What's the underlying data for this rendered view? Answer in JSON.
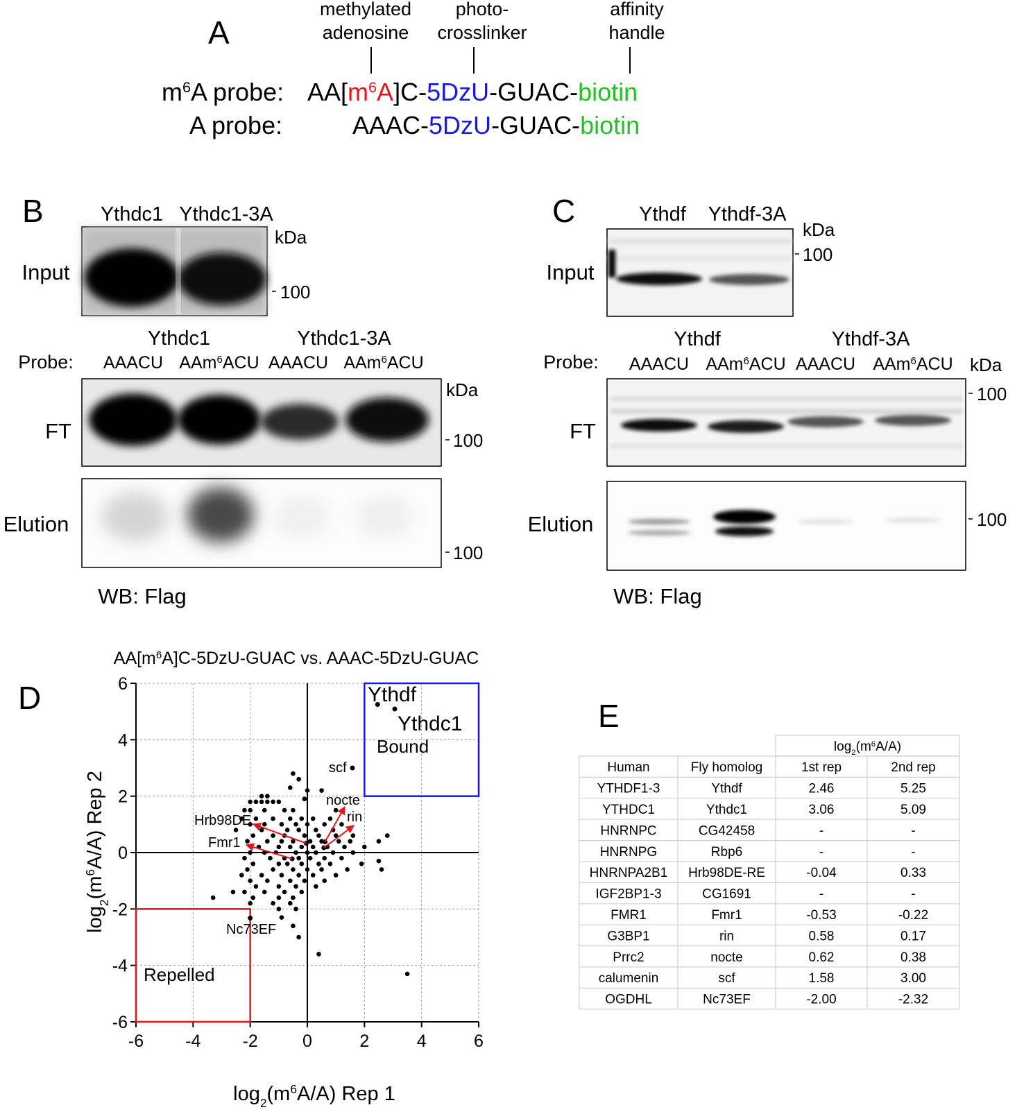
{
  "panel_a": {
    "label": "A",
    "annotations": [
      {
        "lines": [
          "methylated",
          "adenosine"
        ]
      },
      {
        "lines": [
          "photo-",
          "crosslinker"
        ]
      },
      {
        "lines": [
          "affinity",
          "handle"
        ]
      }
    ],
    "probes": [
      {
        "name": [
          {
            "text": "m"
          },
          {
            "text": "6",
            "sup": true
          },
          {
            "text": "A probe:"
          }
        ],
        "sequence": [
          {
            "text": "AA["
          },
          {
            "text": "m",
            "color": "#e8141b"
          },
          {
            "text": "6",
            "color": "#e8141b",
            "sup": true
          },
          {
            "text": "A",
            "color": "#e8141b"
          },
          {
            "text": "]C-"
          },
          {
            "text": "5DzU",
            "color": "#1a1adc"
          },
          {
            "text": "-GUAC-"
          },
          {
            "text": "biotin",
            "color": "#22c322"
          }
        ]
      },
      {
        "name": [
          {
            "text": "A probe:"
          }
        ],
        "sequence": [
          {
            "text": "AAAC-"
          },
          {
            "text": "5DzU",
            "color": "#1a1adc"
          },
          {
            "text": "-GUAC-"
          },
          {
            "text": "biotin",
            "color": "#22c322"
          }
        ]
      }
    ]
  },
  "panel_b": {
    "label": "B",
    "input": {
      "lanes": [
        "Ythdc1",
        "Ythdc1-3A"
      ],
      "unit": "kDa",
      "name": "Input",
      "marker": "100"
    },
    "pulldown": {
      "groups": [
        "Ythdc1",
        "Ythdc1-3A"
      ],
      "probe_label": "Probe:",
      "lanes": [
        [
          {
            "text": "AAACU"
          }
        ],
        [
          {
            "text": "AAm"
          },
          {
            "text": "6",
            "sup": true
          },
          {
            "text": "ACU"
          }
        ],
        [
          {
            "text": "AAACU"
          }
        ],
        [
          {
            "text": "AAm"
          },
          {
            "text": "6",
            "sup": true
          },
          {
            "text": "ACU"
          }
        ]
      ],
      "ft": {
        "name": "FT",
        "unit": "kDa",
        "marker": "100"
      },
      "elution": {
        "name": "Elution",
        "marker": "100"
      }
    },
    "footer": "WB: Flag"
  },
  "panel_c": {
    "label": "C",
    "input": {
      "lanes": [
        "Ythdf",
        "Ythdf-3A"
      ],
      "unit": "kDa",
      "name": "Input",
      "marker": "100"
    },
    "pulldown": {
      "groups": [
        "Ythdf",
        "Ythdf-3A"
      ],
      "probe_label": "Probe:",
      "unit": "kDa",
      "lanes": [
        [
          {
            "text": "AAACU"
          }
        ],
        [
          {
            "text": "AAm"
          },
          {
            "text": "6",
            "sup": true
          },
          {
            "text": "ACU"
          }
        ],
        [
          {
            "text": "AAACU"
          }
        ],
        [
          {
            "text": "AAm"
          },
          {
            "text": "6",
            "sup": true
          },
          {
            "text": "ACU"
          }
        ]
      ],
      "ft": {
        "name": "FT",
        "marker": "100"
      },
      "elution": {
        "name": "Elution",
        "marker": "100"
      }
    },
    "footer": "WB: Flag"
  },
  "chart_data": {
    "type": "scatter",
    "label": "D",
    "title": [
      {
        "text": "AA[m"
      },
      {
        "text": "6",
        "sup": true
      },
      {
        "text": "A]C-5DzU-GUAC vs. AAAC-5DzU-GUAC"
      }
    ],
    "x_label": [
      {
        "text": "log"
      },
      {
        "text": "2",
        "sub": true
      },
      {
        "text": "(m"
      },
      {
        "text": "6",
        "sup": true
      },
      {
        "text": "A/A) Rep 1"
      }
    ],
    "y_label": [
      {
        "text": "log"
      },
      {
        "text": "2",
        "sub": true
      },
      {
        "text": "(m"
      },
      {
        "text": "6",
        "sup": true
      },
      {
        "text": "A/A) Rep 2"
      }
    ],
    "xlim": [
      -6,
      6
    ],
    "ylim": [
      -6,
      6
    ],
    "xticks": [
      -6,
      -4,
      -2,
      0,
      2,
      4,
      6
    ],
    "yticks": [
      -6,
      -4,
      -2,
      0,
      2,
      4,
      6
    ],
    "grid": true,
    "color": "#000000",
    "points": [
      [
        -0.5,
        2.8
      ],
      [
        -0.3,
        2.6
      ],
      [
        -0.6,
        2.3
      ],
      [
        0.0,
        2.2
      ],
      [
        0.5,
        2.2
      ],
      [
        -0.1,
        1.9
      ],
      [
        -1.6,
        2.0
      ],
      [
        -1.4,
        2.0
      ],
      [
        -2.0,
        1.8
      ],
      [
        -1.8,
        1.8
      ],
      [
        -1.6,
        1.8
      ],
      [
        -1.4,
        1.8
      ],
      [
        -1.2,
        1.8
      ],
      [
        -1.0,
        1.8
      ],
      [
        -2.2,
        1.5
      ],
      [
        -2.0,
        1.5
      ],
      [
        -1.5,
        1.5
      ],
      [
        -0.8,
        1.5
      ],
      [
        -0.5,
        1.5
      ],
      [
        1.0,
        1.5
      ],
      [
        -2.3,
        1.2
      ],
      [
        -1.8,
        1.2
      ],
      [
        -1.2,
        1.2
      ],
      [
        -0.6,
        1.2
      ],
      [
        -0.2,
        1.2
      ],
      [
        0.2,
        1.2
      ],
      [
        0.8,
        1.2
      ],
      [
        -2.0,
        1.0
      ],
      [
        -1.5,
        1.0
      ],
      [
        -0.9,
        1.0
      ],
      [
        -0.4,
        1.0
      ],
      [
        0.0,
        1.0
      ],
      [
        0.6,
        1.0
      ],
      [
        1.2,
        1.0
      ],
      [
        -2.5,
        0.8
      ],
      [
        -1.6,
        0.8
      ],
      [
        -0.7,
        0.8
      ],
      [
        -0.3,
        0.8
      ],
      [
        0.3,
        0.8
      ],
      [
        0.9,
        0.8
      ],
      [
        -1.9,
        0.6
      ],
      [
        -1.2,
        0.6
      ],
      [
        -0.8,
        0.6
      ],
      [
        -0.1,
        0.6
      ],
      [
        0.4,
        0.6
      ],
      [
        1.0,
        0.6
      ],
      [
        1.6,
        0.6
      ],
      [
        2.8,
        0.6
      ],
      [
        -2.1,
        0.4
      ],
      [
        -1.4,
        0.4
      ],
      [
        -0.9,
        0.4
      ],
      [
        -0.5,
        0.4
      ],
      [
        0.1,
        0.4
      ],
      [
        0.5,
        0.4
      ],
      [
        1.1,
        0.4
      ],
      [
        1.5,
        0.4
      ],
      [
        2.5,
        0.4
      ],
      [
        -1.7,
        0.2
      ],
      [
        -1.0,
        0.2
      ],
      [
        -0.6,
        0.2
      ],
      [
        -0.2,
        0.2
      ],
      [
        0.2,
        0.2
      ],
      [
        0.7,
        0.2
      ],
      [
        1.3,
        0.2
      ],
      [
        2.0,
        0.2
      ],
      [
        -2.0,
        0.0
      ],
      [
        -1.5,
        0.0
      ],
      [
        -1.1,
        0.0
      ],
      [
        -0.4,
        0.0
      ],
      [
        0.0,
        0.0
      ],
      [
        0.3,
        0.0
      ],
      [
        0.9,
        0.0
      ],
      [
        1.6,
        0.0
      ],
      [
        -2.2,
        -0.2
      ],
      [
        -1.3,
        -0.2
      ],
      [
        -0.8,
        -0.2
      ],
      [
        -0.3,
        -0.2
      ],
      [
        0.1,
        -0.2
      ],
      [
        0.6,
        -0.2
      ],
      [
        1.2,
        -0.2
      ],
      [
        2.5,
        -0.3
      ],
      [
        -1.9,
        -0.4
      ],
      [
        -1.0,
        -0.4
      ],
      [
        -0.7,
        -0.4
      ],
      [
        -0.2,
        -0.4
      ],
      [
        0.4,
        -0.4
      ],
      [
        0.8,
        -0.4
      ],
      [
        1.9,
        -0.4
      ],
      [
        -2.1,
        -0.6
      ],
      [
        -1.2,
        -0.6
      ],
      [
        -0.5,
        -0.6
      ],
      [
        0.0,
        -0.6
      ],
      [
        0.5,
        -0.6
      ],
      [
        1.4,
        -0.6
      ],
      [
        2.6,
        -0.6
      ],
      [
        -2.3,
        -0.8
      ],
      [
        -1.6,
        -0.8
      ],
      [
        -0.9,
        -0.8
      ],
      [
        -0.3,
        -0.8
      ],
      [
        0.2,
        -0.8
      ],
      [
        1.0,
        -0.8
      ],
      [
        -2.0,
        -1.0
      ],
      [
        -1.4,
        -1.0
      ],
      [
        -0.6,
        -1.0
      ],
      [
        -0.1,
        -1.0
      ],
      [
        0.6,
        -1.0
      ],
      [
        -1.8,
        -1.2
      ],
      [
        -1.0,
        -1.2
      ],
      [
        -0.4,
        -1.2
      ],
      [
        0.3,
        -1.2
      ],
      [
        -2.6,
        -1.4
      ],
      [
        -2.2,
        -1.4
      ],
      [
        -1.5,
        -1.4
      ],
      [
        -0.8,
        -1.4
      ],
      [
        -0.2,
        -1.4
      ],
      [
        -3.3,
        -1.6
      ],
      [
        -1.9,
        -1.6
      ],
      [
        -1.0,
        -1.6
      ],
      [
        -0.5,
        -1.6
      ],
      [
        -2.0,
        -1.8
      ],
      [
        -1.2,
        -1.8
      ],
      [
        -0.6,
        -1.8
      ],
      [
        -1.0,
        -2.0
      ],
      [
        -0.4,
        -2.0
      ],
      [
        -0.9,
        -2.3
      ],
      [
        -0.5,
        -2.6
      ],
      [
        -0.3,
        -3.0
      ],
      [
        0.4,
        -3.6
      ],
      [
        3.5,
        -4.3
      ]
    ],
    "highlights": [
      {
        "name": "Ythdf",
        "x": 2.46,
        "y": 5.25,
        "color": "#1a1adc"
      },
      {
        "name": "Ythdc1",
        "x": 3.06,
        "y": 5.09,
        "color": "#1a1adc"
      },
      {
        "name": "scf",
        "x": 1.58,
        "y": 3.0,
        "color": "#000000"
      },
      {
        "name": "nocte",
        "x": 0.62,
        "y": 0.38,
        "color": "#000000",
        "arrow": "#e8141b"
      },
      {
        "name": "rin",
        "x": 0.58,
        "y": 0.17,
        "color": "#000000",
        "arrow": "#e8141b"
      },
      {
        "name": "Hrb98DE",
        "x": -0.04,
        "y": 0.33,
        "color": "#000000",
        "arrow": "#e8141b"
      },
      {
        "name": "Fmr1",
        "x": -0.53,
        "y": -0.22,
        "color": "#000000",
        "arrow": "#e8141b"
      },
      {
        "name": "Nc73EF",
        "x": -2.0,
        "y": -2.32,
        "color": "#000000"
      }
    ],
    "regions": [
      {
        "name": "Bound",
        "color": "#1a1adc",
        "xlim": [
          2,
          6
        ],
        "ylim": [
          2,
          6
        ]
      },
      {
        "name": "Repelled",
        "color": "#e8141b",
        "xlim": [
          -6,
          -2
        ],
        "ylim": [
          -6,
          -2
        ]
      }
    ]
  },
  "table": {
    "label": "E",
    "group_header": [
      {
        "text": "log"
      },
      {
        "text": "2",
        "sub": true
      },
      {
        "text": "(m"
      },
      {
        "text": "6",
        "sup": true
      },
      {
        "text": "A/A)"
      }
    ],
    "columns": [
      "Human",
      "Fly homolog",
      "1st rep",
      "2nd rep"
    ],
    "rows": [
      {
        "cells": [
          "YTHDF1-3",
          "Ythdf",
          "2.46",
          "5.25"
        ],
        "color": "#1a1adc"
      },
      {
        "cells": [
          "YTHDC1",
          "Ythdc1",
          "3.06",
          "5.09"
        ],
        "color": "#1a1adc"
      },
      {
        "cells": [
          "HNRNPC",
          "CG42458",
          "-",
          "-"
        ],
        "color": "#000000"
      },
      {
        "cells": [
          "HNRNPG",
          "Rbp6",
          "-",
          "-"
        ],
        "color": "#000000"
      },
      {
        "cells": [
          "HNRNPA2B1",
          "Hrb98DE-RE",
          "-0.04",
          "0.33"
        ],
        "color": "#000000"
      },
      {
        "cells": [
          "IGF2BP1-3",
          "CG1691",
          "-",
          "-"
        ],
        "color": "#000000"
      },
      {
        "cells": [
          "FMR1",
          "Fmr1",
          "-0.53",
          "-0.22"
        ],
        "color": "#000000"
      },
      {
        "cells": [
          "G3BP1",
          "rin",
          "0.58",
          "0.17"
        ],
        "color": "#000000"
      },
      {
        "cells": [
          "Prrc2",
          "nocte",
          "0.62",
          "0.38"
        ],
        "color": "#000000"
      },
      {
        "cells": [
          "calumenin",
          "scf",
          "1.58",
          "3.00"
        ],
        "color": "#000000"
      },
      {
        "cells": [
          "OGDHL",
          "Nc73EF",
          "-2.00",
          "-2.32"
        ],
        "color": "#e8141b"
      }
    ]
  }
}
